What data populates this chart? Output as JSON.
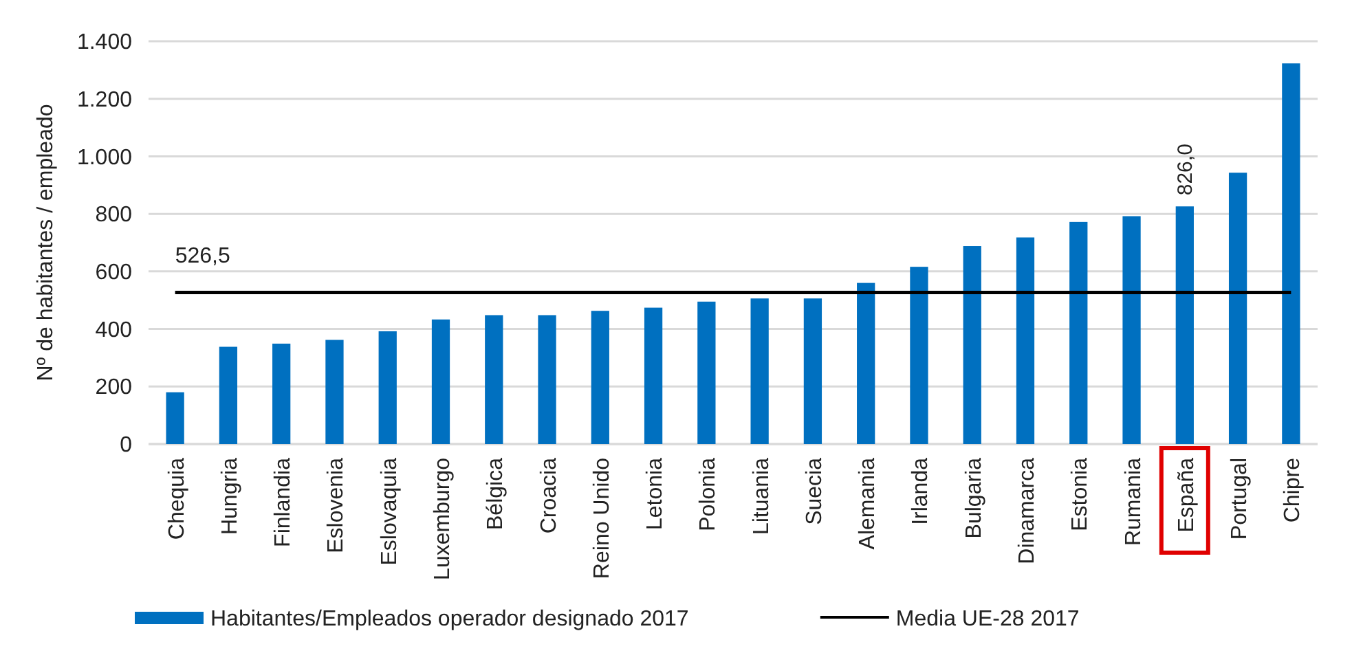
{
  "chart_data": {
    "type": "bar",
    "ylabel": "Nº de habitantes / empleado",
    "categories": [
      "Chequia",
      "Hungria",
      "Finlandia",
      "Eslovenia",
      "Eslovaquia",
      "Luxemburgo",
      "Bélgica",
      "Croacia",
      "Reino Unido",
      "Letonia",
      "Polonia",
      "Lituania",
      "Suecia",
      "Alemania",
      "Irlanda",
      "Bulgaria",
      "Dinamarca",
      "Estonia",
      "Rumania",
      "España",
      "Portugal",
      "Chipre"
    ],
    "series": [
      {
        "name": "Habitantes/Empleados operador designado 2017",
        "color": "#0070c0",
        "values": [
          180,
          338,
          349,
          362,
          392,
          433,
          448,
          448,
          463,
          474,
          495,
          506,
          506,
          560,
          616,
          688,
          718,
          772,
          792,
          826,
          943,
          1323
        ],
        "value_labels": [
          null,
          null,
          null,
          null,
          null,
          null,
          null,
          null,
          null,
          null,
          null,
          null,
          null,
          null,
          null,
          null,
          null,
          null,
          null,
          "826,0",
          null,
          null
        ]
      },
      {
        "name": "Media UE-28 2017",
        "type": "line",
        "color": "#000000",
        "values": [
          526.5,
          526.5,
          526.5,
          526.5,
          526.5,
          526.5,
          526.5,
          526.5,
          526.5,
          526.5,
          526.5,
          526.5,
          526.5,
          526.5,
          526.5,
          526.5,
          526.5,
          526.5,
          526.5,
          526.5,
          526.5,
          526.5
        ],
        "value_labels": [
          "526,5",
          null,
          null,
          null,
          null,
          null,
          null,
          null,
          null,
          null,
          null,
          null,
          null,
          null,
          null,
          null,
          null,
          null,
          null,
          null,
          null,
          null
        ]
      }
    ],
    "ylim": [
      0,
      1400
    ],
    "yticks": [
      0,
      200,
      400,
      600,
      800,
      {
        "value": 1000,
        "label": "1.000"
      },
      {
        "value": 1200,
        "label": "1.200"
      },
      {
        "value": 1400,
        "label": "1.400"
      }
    ],
    "grid": "y",
    "legend": "bottom"
  }
}
